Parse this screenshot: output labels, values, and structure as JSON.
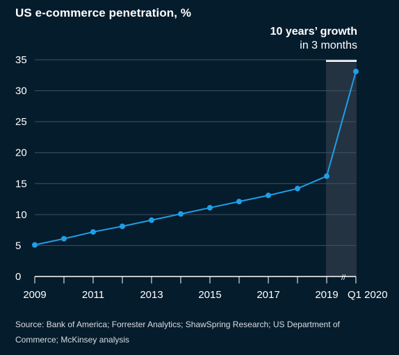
{
  "chart_data": {
    "type": "line",
    "title": "US e-commerce penetration, %",
    "xlabel": "",
    "ylabel": "",
    "x_tick_labels": [
      "2009",
      "2011",
      "2013",
      "2015",
      "2017",
      "2019",
      "Q1 2020"
    ],
    "y_ticks": [
      0,
      5,
      10,
      15,
      20,
      25,
      30,
      35
    ],
    "ylim": [
      0,
      35
    ],
    "grid": "horizontal",
    "series": [
      {
        "color": "#1f9ee8",
        "points": [
          {
            "x": "2009",
            "y": 5.1
          },
          {
            "x": "2010",
            "y": 6.1
          },
          {
            "x": "2011",
            "y": 7.2
          },
          {
            "x": "2012",
            "y": 8.1
          },
          {
            "x": "2013",
            "y": 9.1
          },
          {
            "x": "2014",
            "y": 10.1
          },
          {
            "x": "2015",
            "y": 11.1
          },
          {
            "x": "2016",
            "y": 12.1
          },
          {
            "x": "2017",
            "y": 13.1
          },
          {
            "x": "2018",
            "y": 14.2
          },
          {
            "x": "2019",
            "y": 16.2
          },
          {
            "x": "Q1 2020",
            "y": 33.1
          }
        ]
      }
    ],
    "highlight": {
      "from": "2019",
      "to": "Q1 2020",
      "label_bold": "10 years’ growth",
      "label_regular": "in 3 months"
    },
    "axis_break_marker": "//"
  },
  "source": "Source: Bank of America; Forrester Analytics; ShawSpring Research; US Department of Commerce; McKinsey analysis",
  "colors": {
    "background": "#051c2c",
    "line": "#1f9ee8",
    "highlight_band": "#243342",
    "grid": "#3e5363",
    "text": "#ffffff"
  }
}
